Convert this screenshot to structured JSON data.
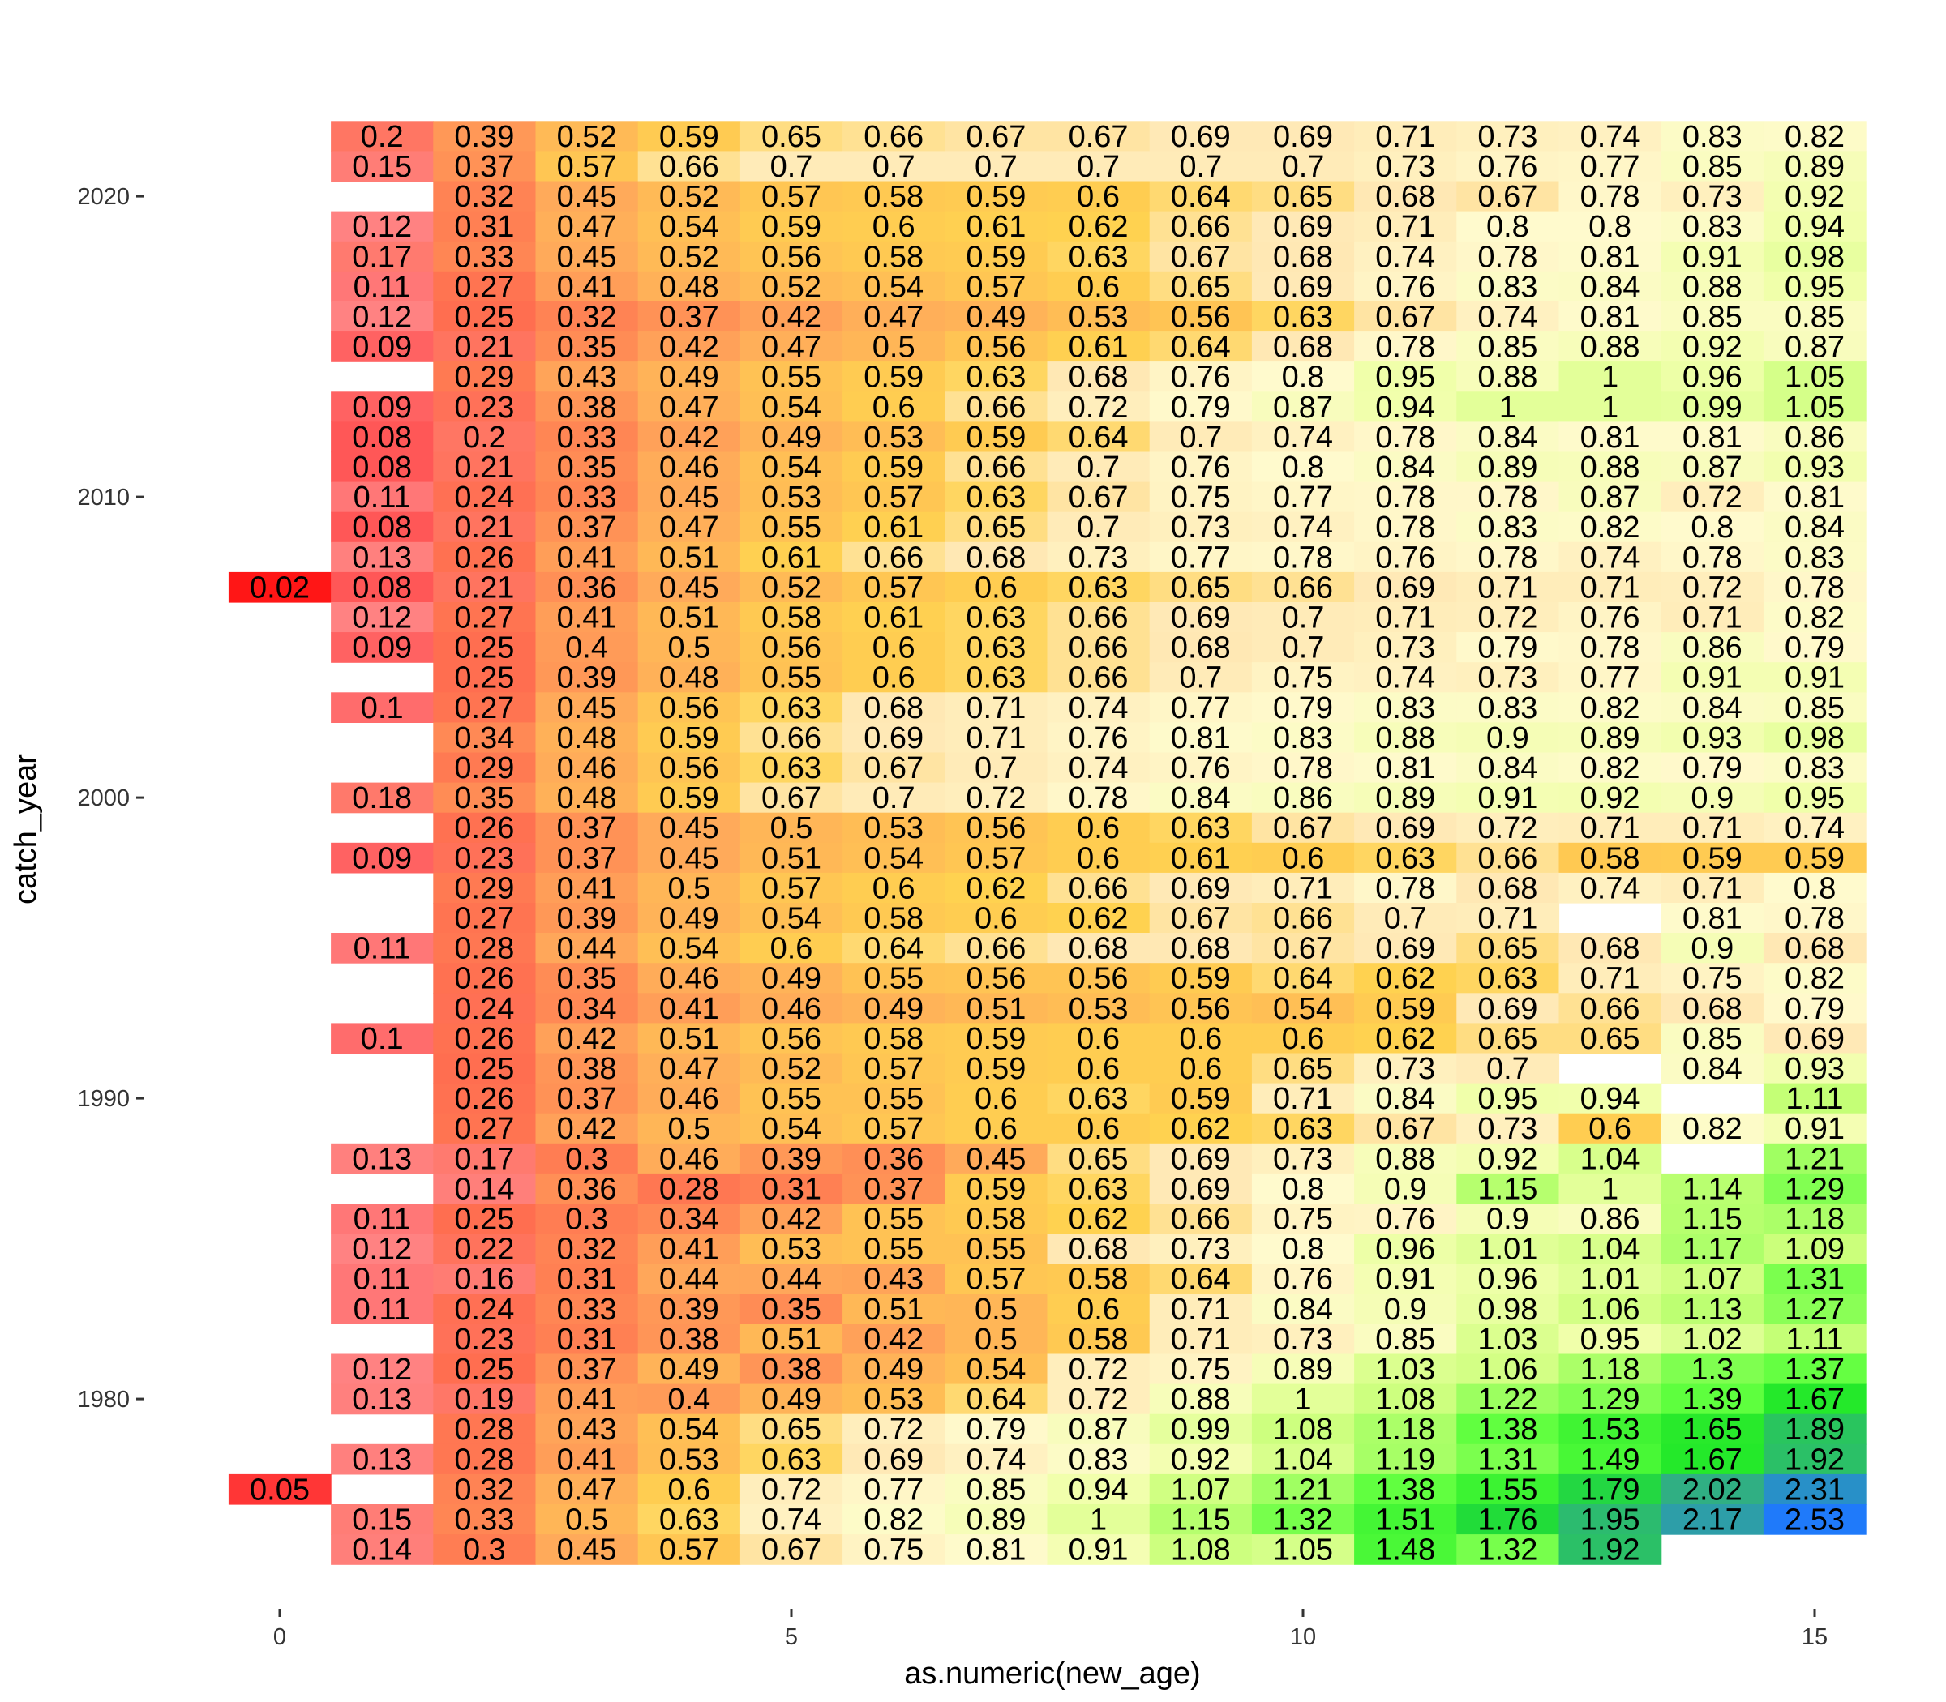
{
  "chart_data": {
    "type": "heatmap",
    "title": "",
    "xlabel": "as.numeric(new_age)",
    "ylabel": "catch_year",
    "x": [
      0,
      1,
      2,
      3,
      4,
      5,
      6,
      7,
      8,
      9,
      10,
      11,
      12,
      13,
      14,
      15
    ],
    "x_ticks": [
      0,
      5,
      10,
      15
    ],
    "y_ticks": [
      1980,
      1990,
      2000,
      2010,
      2020
    ],
    "y_range": [
      1974,
      2022
    ],
    "grid": false,
    "legend": "none",
    "color_scale": [
      "#ff0000",
      "#ffa500",
      "#ffff00",
      "#00ff00",
      "#0000ff"
    ],
    "rows": [
      {
        "year": 2022,
        "values": [
          null,
          0.2,
          0.39,
          0.52,
          0.59,
          0.65,
          0.66,
          0.67,
          0.67,
          0.69,
          0.69,
          0.71,
          0.73,
          0.74,
          0.83,
          0.82
        ]
      },
      {
        "year": 2021,
        "values": [
          null,
          0.15,
          0.37,
          0.57,
          0.66,
          0.7,
          0.7,
          0.7,
          0.7,
          0.7,
          0.7,
          0.73,
          0.76,
          0.77,
          0.85,
          0.89
        ]
      },
      {
        "year": 2020,
        "values": [
          null,
          null,
          0.32,
          0.45,
          0.52,
          0.57,
          0.58,
          0.59,
          0.6,
          0.64,
          0.65,
          0.68,
          0.67,
          0.78,
          0.73,
          0.92
        ]
      },
      {
        "year": 2019,
        "values": [
          null,
          0.12,
          0.31,
          0.47,
          0.54,
          0.59,
          0.6,
          0.61,
          0.62,
          0.66,
          0.69,
          0.71,
          0.8,
          0.8,
          0.83,
          0.94
        ]
      },
      {
        "year": 2018,
        "values": [
          null,
          0.17,
          0.33,
          0.45,
          0.52,
          0.56,
          0.58,
          0.59,
          0.63,
          0.67,
          0.68,
          0.74,
          0.78,
          0.81,
          0.91,
          0.98
        ]
      },
      {
        "year": 2017,
        "values": [
          null,
          0.11,
          0.27,
          0.41,
          0.48,
          0.52,
          0.54,
          0.57,
          0.6,
          0.65,
          0.69,
          0.76,
          0.83,
          0.84,
          0.88,
          0.95
        ]
      },
      {
        "year": 2016,
        "values": [
          null,
          0.12,
          0.25,
          0.32,
          0.37,
          0.42,
          0.47,
          0.49,
          0.53,
          0.56,
          0.63,
          0.67,
          0.74,
          0.81,
          0.85,
          0.85
        ]
      },
      {
        "year": 2015,
        "values": [
          null,
          0.09,
          0.21,
          0.35,
          0.42,
          0.47,
          0.5,
          0.56,
          0.61,
          0.64,
          0.68,
          0.78,
          0.85,
          0.88,
          0.92,
          0.87
        ]
      },
      {
        "year": 2014,
        "values": [
          null,
          null,
          0.29,
          0.43,
          0.49,
          0.55,
          0.59,
          0.63,
          0.68,
          0.76,
          0.8,
          0.95,
          0.88,
          1,
          0.96,
          1.05
        ]
      },
      {
        "year": 2013,
        "values": [
          null,
          0.09,
          0.23,
          0.38,
          0.47,
          0.54,
          0.6,
          0.66,
          0.72,
          0.79,
          0.87,
          0.94,
          1,
          1,
          0.99,
          1.05
        ]
      },
      {
        "year": 2012,
        "values": [
          null,
          0.08,
          0.2,
          0.33,
          0.42,
          0.49,
          0.53,
          0.59,
          0.64,
          0.7,
          0.74,
          0.78,
          0.84,
          0.81,
          0.81,
          0.86
        ]
      },
      {
        "year": 2011,
        "values": [
          null,
          0.08,
          0.21,
          0.35,
          0.46,
          0.54,
          0.59,
          0.66,
          0.7,
          0.76,
          0.8,
          0.84,
          0.89,
          0.88,
          0.87,
          0.93
        ]
      },
      {
        "year": 2010,
        "values": [
          null,
          0.11,
          0.24,
          0.33,
          0.45,
          0.53,
          0.57,
          0.63,
          0.67,
          0.75,
          0.77,
          0.78,
          0.78,
          0.87,
          0.72,
          0.81
        ]
      },
      {
        "year": 2009,
        "values": [
          null,
          0.08,
          0.21,
          0.37,
          0.47,
          0.55,
          0.61,
          0.65,
          0.7,
          0.73,
          0.74,
          0.78,
          0.83,
          0.82,
          0.8,
          0.84
        ]
      },
      {
        "year": 2008,
        "values": [
          null,
          0.13,
          0.26,
          0.41,
          0.51,
          0.61,
          0.66,
          0.68,
          0.73,
          0.77,
          0.78,
          0.76,
          0.78,
          0.74,
          0.78,
          0.83
        ]
      },
      {
        "year": 2007,
        "values": [
          0.02,
          0.08,
          0.21,
          0.36,
          0.45,
          0.52,
          0.57,
          0.6,
          0.63,
          0.65,
          0.66,
          0.69,
          0.71,
          0.71,
          0.72,
          0.78
        ]
      },
      {
        "year": 2006,
        "values": [
          null,
          0.12,
          0.27,
          0.41,
          0.51,
          0.58,
          0.61,
          0.63,
          0.66,
          0.69,
          0.7,
          0.71,
          0.72,
          0.76,
          0.71,
          0.82
        ]
      },
      {
        "year": 2005,
        "values": [
          null,
          0.09,
          0.25,
          0.4,
          0.5,
          0.56,
          0.6,
          0.63,
          0.66,
          0.68,
          0.7,
          0.73,
          0.79,
          0.78,
          0.86,
          0.79
        ]
      },
      {
        "year": 2004,
        "values": [
          null,
          null,
          0.25,
          0.39,
          0.48,
          0.55,
          0.6,
          0.63,
          0.66,
          0.7,
          0.75,
          0.74,
          0.73,
          0.77,
          0.91,
          0.91
        ]
      },
      {
        "year": 2003,
        "values": [
          null,
          0.1,
          0.27,
          0.45,
          0.56,
          0.63,
          0.68,
          0.71,
          0.74,
          0.77,
          0.79,
          0.83,
          0.83,
          0.82,
          0.84,
          0.85
        ]
      },
      {
        "year": 2002,
        "values": [
          null,
          null,
          0.34,
          0.48,
          0.59,
          0.66,
          0.69,
          0.71,
          0.76,
          0.81,
          0.83,
          0.88,
          0.9,
          0.89,
          0.93,
          0.98
        ]
      },
      {
        "year": 2001,
        "values": [
          null,
          null,
          0.29,
          0.46,
          0.56,
          0.63,
          0.67,
          0.7,
          0.74,
          0.76,
          0.78,
          0.81,
          0.84,
          0.82,
          0.79,
          0.83
        ]
      },
      {
        "year": 2000,
        "values": [
          null,
          0.18,
          0.35,
          0.48,
          0.59,
          0.67,
          0.7,
          0.72,
          0.78,
          0.84,
          0.86,
          0.89,
          0.91,
          0.92,
          0.9,
          0.95
        ]
      },
      {
        "year": 1999,
        "values": [
          null,
          null,
          0.26,
          0.37,
          0.45,
          0.5,
          0.53,
          0.56,
          0.6,
          0.63,
          0.67,
          0.69,
          0.72,
          0.71,
          0.71,
          0.74
        ]
      },
      {
        "year": 1998,
        "values": [
          null,
          0.09,
          0.23,
          0.37,
          0.45,
          0.51,
          0.54,
          0.57,
          0.6,
          0.61,
          0.6,
          0.63,
          0.66,
          0.58,
          0.59,
          0.59
        ]
      },
      {
        "year": 1997,
        "values": [
          null,
          null,
          0.29,
          0.41,
          0.5,
          0.57,
          0.6,
          0.62,
          0.66,
          0.69,
          0.71,
          0.78,
          0.68,
          0.74,
          0.71,
          0.8
        ]
      },
      {
        "year": 1996,
        "values": [
          null,
          null,
          0.27,
          0.39,
          0.49,
          0.54,
          0.58,
          0.6,
          0.62,
          0.67,
          0.66,
          0.7,
          0.71,
          null,
          0.81,
          0.78
        ]
      },
      {
        "year": 1995,
        "values": [
          null,
          0.11,
          0.28,
          0.44,
          0.54,
          0.6,
          0.64,
          0.66,
          0.68,
          0.68,
          0.67,
          0.69,
          0.65,
          0.68,
          0.9,
          0.68
        ]
      },
      {
        "year": 1994,
        "values": [
          null,
          null,
          0.26,
          0.35,
          0.46,
          0.49,
          0.55,
          0.56,
          0.56,
          0.59,
          0.64,
          0.62,
          0.63,
          0.71,
          0.75,
          0.82
        ]
      },
      {
        "year": 1993,
        "values": [
          null,
          null,
          0.24,
          0.34,
          0.41,
          0.46,
          0.49,
          0.51,
          0.53,
          0.56,
          0.54,
          0.59,
          0.69,
          0.66,
          0.68,
          0.79
        ]
      },
      {
        "year": 1992,
        "values": [
          null,
          0.1,
          0.26,
          0.42,
          0.51,
          0.56,
          0.58,
          0.59,
          0.6,
          0.6,
          0.6,
          0.62,
          0.65,
          0.65,
          0.85,
          0.69
        ]
      },
      {
        "year": 1991,
        "values": [
          null,
          null,
          0.25,
          0.38,
          0.47,
          0.52,
          0.57,
          0.59,
          0.6,
          0.6,
          0.65,
          0.73,
          0.7,
          null,
          0.84,
          0.93
        ]
      },
      {
        "year": 1990,
        "values": [
          null,
          null,
          0.26,
          0.37,
          0.46,
          0.55,
          0.55,
          0.6,
          0.63,
          0.59,
          0.71,
          0.84,
          0.95,
          0.94,
          null,
          1.11
        ]
      },
      {
        "year": 1989,
        "values": [
          null,
          null,
          0.27,
          0.42,
          0.5,
          0.54,
          0.57,
          0.6,
          0.6,
          0.62,
          0.63,
          0.67,
          0.73,
          0.6,
          0.82,
          0.91
        ]
      },
      {
        "year": 1988,
        "values": [
          null,
          0.13,
          0.17,
          0.3,
          0.46,
          0.39,
          0.36,
          0.45,
          0.65,
          0.69,
          0.73,
          0.88,
          0.92,
          1.04,
          null,
          1.21
        ]
      },
      {
        "year": 1987,
        "values": [
          null,
          null,
          0.14,
          0.36,
          0.28,
          0.31,
          0.37,
          0.59,
          0.63,
          0.69,
          0.8,
          0.9,
          1.15,
          1,
          1.14,
          1.29
        ]
      },
      {
        "year": 1986,
        "values": [
          null,
          0.11,
          0.25,
          0.3,
          0.34,
          0.42,
          0.55,
          0.58,
          0.62,
          0.66,
          0.75,
          0.76,
          0.9,
          0.86,
          1.15,
          1.18
        ]
      },
      {
        "year": 1985,
        "values": [
          null,
          0.12,
          0.22,
          0.32,
          0.41,
          0.53,
          0.55,
          0.55,
          0.68,
          0.73,
          0.8,
          0.96,
          1.01,
          1.04,
          1.17,
          1.09
        ]
      },
      {
        "year": 1984,
        "values": [
          null,
          0.11,
          0.16,
          0.31,
          0.44,
          0.44,
          0.43,
          0.57,
          0.58,
          0.64,
          0.76,
          0.91,
          0.96,
          1.01,
          1.07,
          1.31
        ]
      },
      {
        "year": 1983,
        "values": [
          null,
          0.11,
          0.24,
          0.33,
          0.39,
          0.35,
          0.51,
          0.5,
          0.6,
          0.71,
          0.84,
          0.9,
          0.98,
          1.06,
          1.13,
          1.27
        ]
      },
      {
        "year": 1982,
        "values": [
          null,
          null,
          0.23,
          0.31,
          0.38,
          0.51,
          0.42,
          0.5,
          0.58,
          0.71,
          0.73,
          0.85,
          1.03,
          0.95,
          1.02,
          1.11
        ]
      },
      {
        "year": 1981,
        "values": [
          null,
          0.12,
          0.25,
          0.37,
          0.49,
          0.38,
          0.49,
          0.54,
          0.72,
          0.75,
          0.89,
          1.03,
          1.06,
          1.18,
          1.3,
          1.37
        ]
      },
      {
        "year": 1980,
        "values": [
          null,
          0.13,
          0.19,
          0.41,
          0.4,
          0.49,
          0.53,
          0.64,
          0.72,
          0.88,
          1,
          1.08,
          1.22,
          1.29,
          1.39,
          1.67
        ]
      },
      {
        "year": 1979,
        "values": [
          null,
          null,
          0.28,
          0.43,
          0.54,
          0.65,
          0.72,
          0.79,
          0.87,
          0.99,
          1.08,
          1.18,
          1.38,
          1.53,
          1.65,
          1.89
        ]
      },
      {
        "year": 1978,
        "values": [
          null,
          0.13,
          0.28,
          0.41,
          0.53,
          0.63,
          0.69,
          0.74,
          0.83,
          0.92,
          1.04,
          1.19,
          1.31,
          1.49,
          1.67,
          1.92
        ]
      },
      {
        "year": 1977,
        "values": [
          0.05,
          null,
          0.32,
          0.47,
          0.6,
          0.72,
          0.77,
          0.85,
          0.94,
          1.07,
          1.21,
          1.38,
          1.55,
          1.79,
          2.02,
          2.31
        ]
      },
      {
        "year": 1976,
        "values": [
          null,
          0.15,
          0.33,
          0.5,
          0.63,
          0.74,
          0.82,
          0.89,
          1,
          1.15,
          1.32,
          1.51,
          1.76,
          1.95,
          2.17,
          2.53
        ]
      },
      {
        "year": 1975,
        "values": [
          null,
          0.14,
          0.3,
          0.45,
          0.57,
          0.67,
          0.75,
          0.81,
          0.91,
          1.08,
          1.05,
          1.48,
          1.32,
          1.92,
          null,
          null
        ]
      }
    ]
  }
}
